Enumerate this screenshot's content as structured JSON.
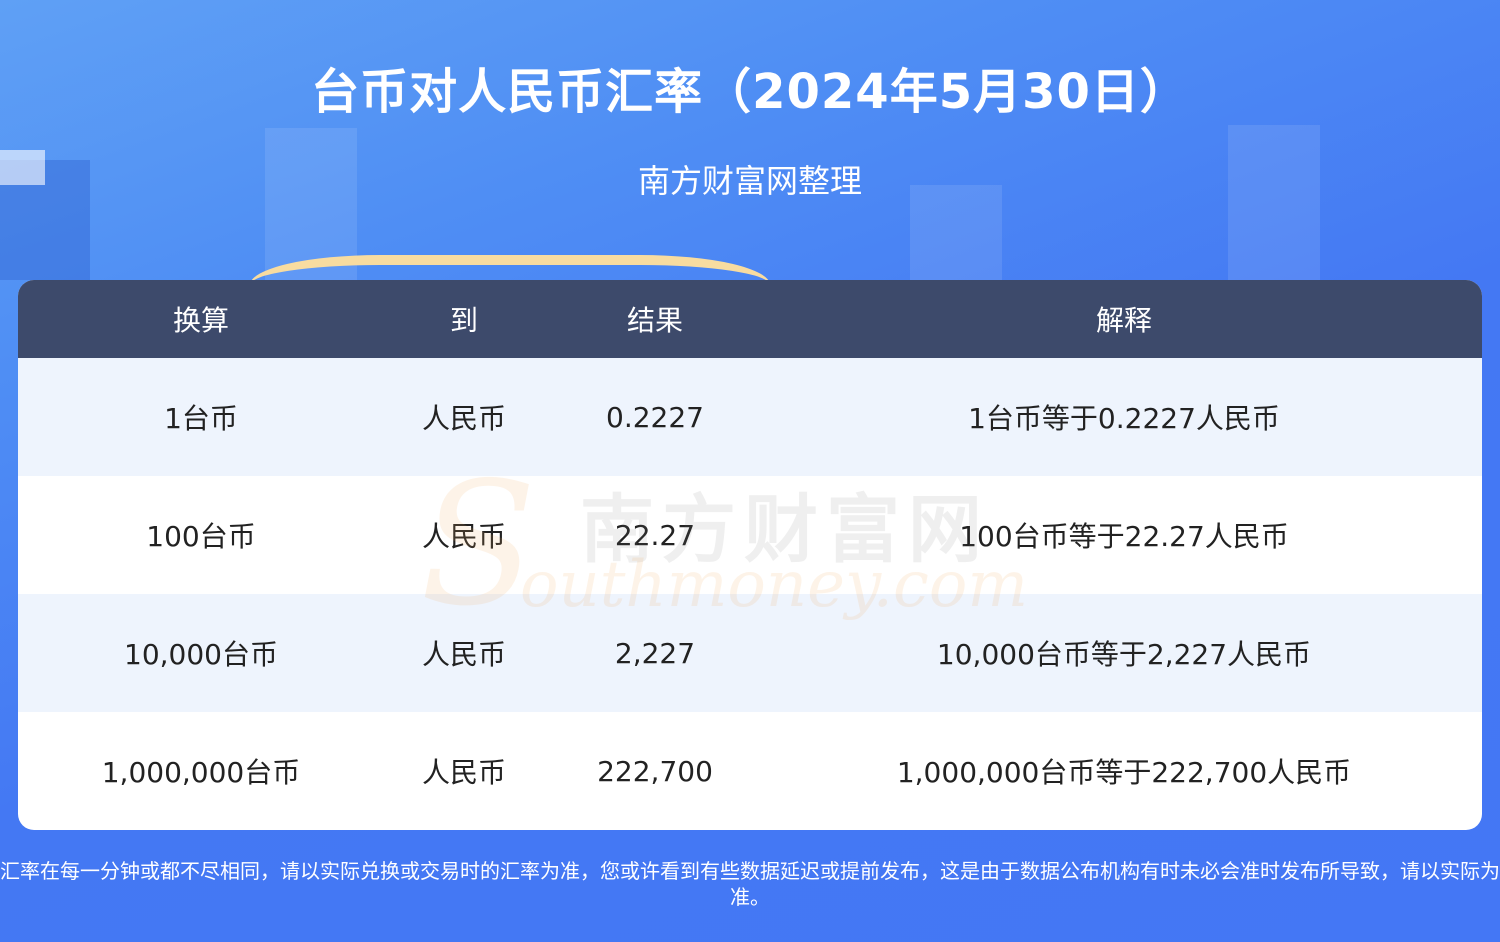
{
  "header": {
    "title": "台币对人民币汇率（2024年5月30日）",
    "subtitle": "南方财富网整理"
  },
  "table": {
    "columns": [
      "换算",
      "到",
      "结果",
      "解释"
    ],
    "rows": [
      [
        "1台币",
        "人民币",
        "0.2227",
        "1台币等于0.2227人民币"
      ],
      [
        "100台币",
        "人民币",
        "22.27",
        "100台币等于22.27人民币"
      ],
      [
        "10,000台币",
        "人民币",
        "2,227",
        "10,000台币等于2,227人民币"
      ],
      [
        "1,000,000台币",
        "人民币",
        "222,700",
        "1,000,000台币等于222,700人民币"
      ]
    ]
  },
  "watermark": {
    "cn": "南方财富网",
    "en": "Southmoney.com"
  },
  "footer": {
    "note": "汇率在每一分钟或都不尽相同，请以实际兑换或交易时的汇率为准，您或许看到有些数据延迟或提前发布，这是由于数据公布机构有时未必会准时发布所导致，请以实际为准。"
  },
  "colors": {
    "header_bg": "#3d4a6b",
    "row_alt": "#eef4fd",
    "background": "#4478f3"
  }
}
